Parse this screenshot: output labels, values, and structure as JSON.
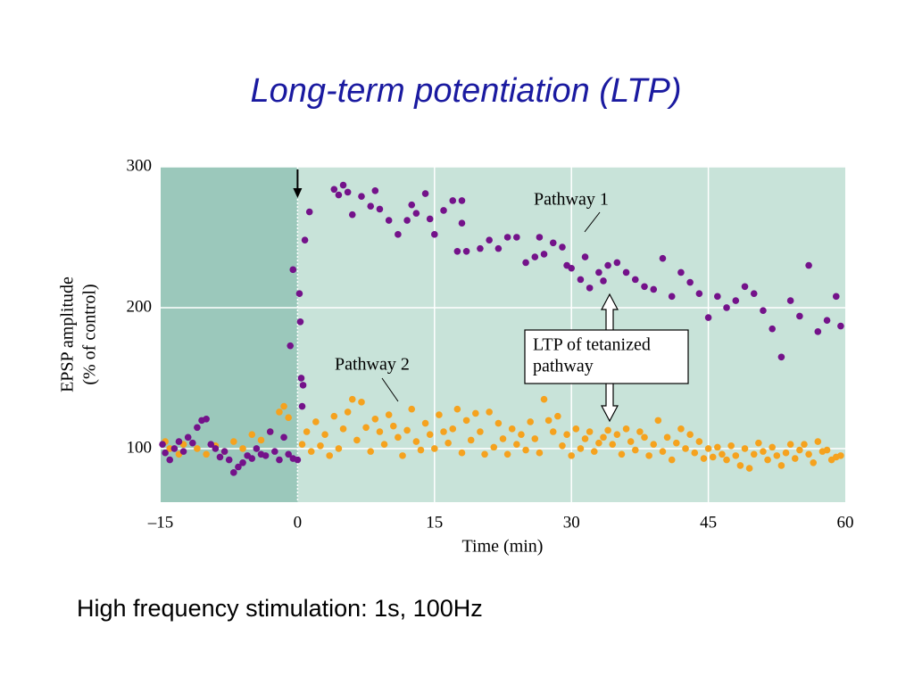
{
  "slide": {
    "title": "Long-term potentiation (LTP)",
    "text": "High frequency stimulation: 1s, 100Hz"
  },
  "chart_data": {
    "type": "scatter",
    "xlabel": "Time (min)",
    "ylabel": [
      "EPSP amplitude",
      "(% of control)"
    ],
    "annotation": [
      "LTP of tetanized",
      "pathway"
    ],
    "xlim": [
      -15,
      60
    ],
    "xticks": [
      {
        "value": -15,
        "label": "–15"
      },
      0,
      15,
      30,
      45,
      60
    ],
    "ylim": [
      62,
      300
    ],
    "yticks": [
      100,
      200,
      300
    ],
    "grid": true,
    "series": [
      {
        "name": "Pathway 1",
        "color": "#74128a",
        "x": [
          -14.8,
          -14.5,
          -14,
          -13.5,
          -13,
          -12.5,
          -12,
          -11.5,
          -11,
          -10.5,
          -10,
          -9.5,
          -9,
          -8.5,
          -8,
          -7.5,
          -7,
          -6.5,
          -6,
          -5.5,
          -5,
          -4.5,
          -4,
          -3.5,
          -3,
          -2.5,
          -2,
          -1.5,
          -1,
          -0.5,
          0,
          -0.8,
          -0.5,
          0.2,
          0.3,
          0.4,
          0.5,
          0.6,
          0.8,
          1.3,
          4,
          4.5,
          5,
          5.5,
          6,
          7,
          8,
          8.5,
          9,
          10,
          11,
          12,
          12.5,
          13,
          14,
          14.5,
          15,
          16,
          17,
          17.5,
          18,
          18,
          18.5,
          20,
          21,
          22,
          23,
          24,
          25,
          26,
          26.5,
          27,
          28,
          29,
          29.5,
          30,
          31,
          31.5,
          32,
          33,
          33.5,
          34,
          35,
          36,
          37,
          38,
          39,
          40,
          41,
          42,
          43,
          44,
          45,
          46,
          47,
          48,
          49,
          50,
          51,
          52,
          53,
          54,
          55,
          56,
          57,
          58,
          59,
          59.5
        ],
        "values": [
          103,
          97,
          92,
          100,
          105,
          98,
          108,
          104,
          115,
          120,
          121,
          103,
          100,
          94,
          98,
          92,
          83,
          87,
          90,
          95,
          93,
          100,
          96,
          95,
          112,
          98,
          92,
          108,
          96,
          93,
          92,
          173,
          227,
          210,
          190,
          150,
          130,
          145,
          248,
          268,
          284,
          280,
          287,
          282,
          266,
          279,
          272,
          283,
          270,
          262,
          252,
          262,
          273,
          267,
          281,
          263,
          252,
          269,
          276,
          240,
          276,
          260,
          240,
          242,
          248,
          242,
          250,
          250,
          232,
          236,
          250,
          238,
          246,
          243,
          230,
          228,
          220,
          236,
          214,
          225,
          219,
          230,
          232,
          225,
          220,
          215,
          213,
          235,
          208,
          225,
          218,
          210,
          193,
          208,
          200,
          205,
          215,
          210,
          198,
          185,
          165,
          205,
          194,
          230,
          183,
          191,
          208,
          187
        ]
      },
      {
        "name": "Pathway 2",
        "color": "#f5a21e",
        "x": [
          -14.5,
          -14,
          -13,
          -12.5,
          -11,
          -10,
          -9,
          -8,
          -7,
          -6,
          -5,
          -4,
          -3,
          -2,
          -1.5,
          -1,
          0.5,
          1,
          1.5,
          2,
          2.5,
          3,
          3.5,
          4,
          4.5,
          5,
          5.5,
          6,
          6.5,
          7,
          7.5,
          8,
          8.5,
          9,
          9.5,
          10,
          10.5,
          11,
          11.5,
          12,
          12.5,
          13,
          13.5,
          14,
          14.5,
          15,
          15.5,
          16,
          16.5,
          17,
          17.5,
          18,
          18.5,
          19,
          19.5,
          20,
          20.5,
          21,
          21.5,
          22,
          22.5,
          23,
          23.5,
          24,
          24.5,
          25,
          25.5,
          26,
          26.5,
          27,
          27.5,
          28,
          28.5,
          29,
          29.5,
          30,
          30.5,
          31,
          31.5,
          32,
          32.5,
          33,
          33.5,
          34,
          34.5,
          35,
          35.5,
          36,
          36.5,
          37,
          37.5,
          38,
          38.5,
          39,
          39.5,
          40,
          40.5,
          41,
          41.5,
          42,
          42.5,
          43,
          43.5,
          44,
          44.5,
          45,
          45.5,
          46,
          46.5,
          47,
          47.5,
          48,
          48.5,
          49,
          49.5,
          50,
          50.5,
          51,
          51.5,
          52,
          52.5,
          53,
          53.5,
          54,
          54.5,
          55,
          55.5,
          56,
          56.5,
          57,
          57.5,
          58,
          58.5,
          59,
          59.5
        ],
        "values": [
          105,
          100,
          96,
          103,
          100,
          96,
          102,
          98,
          105,
          100,
          110,
          106,
          112,
          126,
          130,
          122,
          103,
          112,
          98,
          119,
          102,
          110,
          95,
          123,
          100,
          114,
          126,
          135,
          106,
          133,
          115,
          98,
          121,
          112,
          103,
          124,
          116,
          108,
          95,
          113,
          128,
          105,
          99,
          118,
          110,
          100,
          124,
          112,
          104,
          114,
          128,
          97,
          120,
          106,
          125,
          112,
          96,
          126,
          101,
          118,
          107,
          96,
          114,
          103,
          110,
          99,
          119,
          107,
          97,
          135,
          120,
          112,
          123,
          102,
          110,
          95,
          114,
          100,
          107,
          112,
          98,
          104,
          108,
          113,
          103,
          110,
          96,
          114,
          105,
          99,
          112,
          108,
          95,
          103,
          120,
          98,
          108,
          92,
          104,
          114,
          100,
          110,
          97,
          105,
          93,
          100,
          94,
          101,
          96,
          92,
          102,
          95,
          88,
          100,
          86,
          96,
          104,
          98,
          92,
          101,
          95,
          88,
          97,
          103,
          93,
          99,
          103,
          96,
          90,
          105,
          98,
          99,
          92,
          94,
          95
        ]
      }
    ]
  }
}
